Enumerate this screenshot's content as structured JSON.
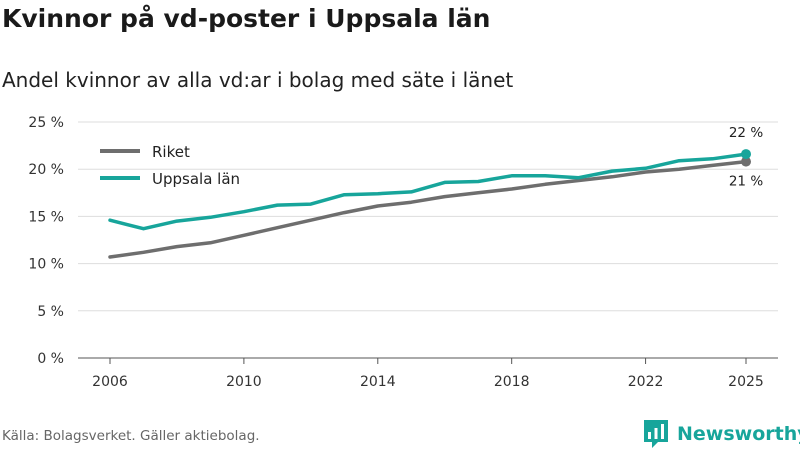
{
  "header": {
    "title": "Kvinnor på vd-poster i Uppsala län",
    "subtitle": "Andel kvinnor av alla vd:ar i bolag med säte i länet"
  },
  "footer": {
    "source": "Källa: Bolagsverket. Gäller aktiebolag.",
    "brand": "Newsworthy",
    "brand_icon": "newsworthy-logo-icon"
  },
  "chart_data": {
    "type": "line",
    "title": "Kvinnor på vd-poster i Uppsala län",
    "subtitle": "Andel kvinnor av alla vd:ar i bolag med säte i länet",
    "xlabel": "",
    "ylabel": "",
    "x": [
      2006,
      2007,
      2008,
      2009,
      2010,
      2011,
      2012,
      2013,
      2014,
      2015,
      2016,
      2017,
      2018,
      2019,
      2020,
      2021,
      2022,
      2023,
      2024,
      2025
    ],
    "x_ticks": [
      2006,
      2010,
      2014,
      2018,
      2022,
      2025
    ],
    "ylim": [
      0,
      25
    ],
    "y_ticks": [
      0,
      5,
      10,
      15,
      20,
      25
    ],
    "y_tick_labels": [
      "0 %",
      "5 %",
      "10 %",
      "15 %",
      "20 %",
      "25 %"
    ],
    "grid": true,
    "legend_position": "top-left",
    "series": [
      {
        "name": "Riket",
        "color": "#6e6e6e",
        "values": [
          10.7,
          11.2,
          11.8,
          12.2,
          13.0,
          13.8,
          14.6,
          15.4,
          16.1,
          16.5,
          17.1,
          17.5,
          17.9,
          18.4,
          18.8,
          19.2,
          19.7,
          20.0,
          20.4,
          20.8
        ],
        "end_label": "21 %"
      },
      {
        "name": "Uppsala län",
        "color": "#17a59b",
        "values": [
          14.6,
          13.7,
          14.5,
          14.9,
          15.5,
          16.2,
          16.3,
          17.3,
          17.4,
          17.6,
          18.6,
          18.7,
          19.3,
          19.3,
          19.1,
          19.8,
          20.1,
          20.9,
          21.1,
          21.6
        ],
        "end_label": "22 %"
      }
    ]
  }
}
